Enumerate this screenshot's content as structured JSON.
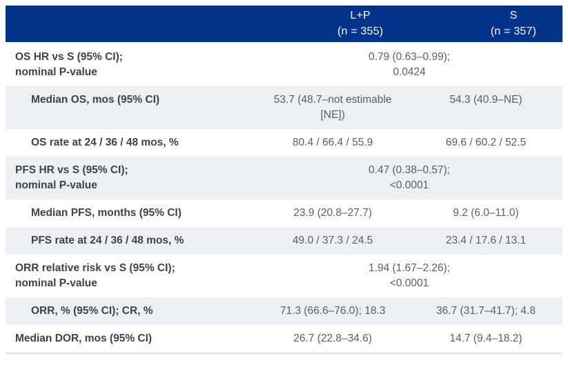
{
  "table": {
    "header": {
      "lp": {
        "line1": "L+P",
        "line2": "(n = 355)"
      },
      "s": {
        "line1": "S",
        "line2": "(n = 357)"
      }
    },
    "rows": [
      {
        "label_line1": "OS HR vs S (95% CI);",
        "label_line2": "nominal P-value",
        "merged_line1": "0.79 (0.63–0.99);",
        "merged_line2": "0.0424"
      },
      {
        "label": "Median OS, mos (95% CI)",
        "lp": "53.7 (48.7–not estimable [NE])",
        "s": "54.3 (40.9–NE)"
      },
      {
        "label": "OS rate at 24 / 36 / 48 mos, %",
        "lp": "80.4 / 66.4 / 55.9",
        "s": "69.6 / 60.2 / 52.5"
      },
      {
        "label_line1": "PFS HR vs S (95% CI);",
        "label_line2": "nominal P-value",
        "merged_line1": "0.47 (0.38–0.57);",
        "merged_line2": "<0.0001"
      },
      {
        "label": "Median PFS, months (95% CI)",
        "lp": "23.9 (20.8–27.7)",
        "s": "9.2 (6.0–11.0)"
      },
      {
        "label": "PFS rate at 24 / 36 / 48 mos, %",
        "lp": "49.0 / 37.3 / 24.5",
        "s": "23.4 / 17.6 / 13.1"
      },
      {
        "label_line1": "ORR relative risk vs S (95% CI);",
        "label_line2": "nominal P-value",
        "merged_line1": "1.94 (1.67–2.26);",
        "merged_line2": "<0.0001"
      },
      {
        "label": "ORR, % (95% CI); CR, %",
        "lp": "71.3 (66.6–76.0); 18.3",
        "s": "36.7 (31.7–41.7); 4.8"
      },
      {
        "label": "Median DOR, mos (95% CI)",
        "lp": "26.7 (22.8–34.6)",
        "s": "14.7 (9.4–18.2)"
      }
    ],
    "colors": {
      "header_bg": "#04338C",
      "header_text": "#FFFFFF",
      "stripe_bg": "#ECEFF4",
      "label_text": "#3F4246",
      "value_text": "#5A5E63",
      "bottom_border": "#DEE1E5"
    }
  }
}
